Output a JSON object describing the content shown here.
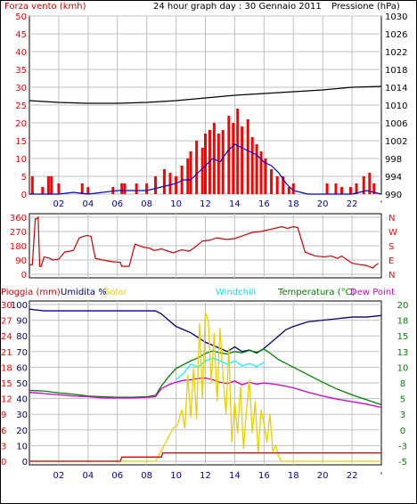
{
  "header": {
    "left_label": "Forza vento (kmh)",
    "center_title": "24 hour graph day : 30 Gennaio 2011",
    "right_label": "Pressione (hPa)"
  },
  "colors": {
    "red": "#ff0000",
    "dark_red": "#cc0000",
    "blue": "#0000cc",
    "navy": "#000080",
    "black": "#000000",
    "gold": "#e8d000",
    "cyan": "#00ffff",
    "green": "#008000",
    "magenta": "#cc00cc",
    "grid": "#c0c0c0"
  },
  "x_ticks": [
    "02",
    "04",
    "06",
    "08",
    "10",
    "12",
    "14",
    "16",
    "18",
    "20",
    "22",
    "'"
  ],
  "chart_data": [
    {
      "type": "line",
      "title": "24 hour graph day : 30 Gennaio 2011",
      "x_range_hours": [
        0,
        24
      ],
      "wind_axis": {
        "label": "Forza vento (kmh)",
        "ticks": [
          0,
          5,
          10,
          15,
          20,
          25,
          30,
          35,
          40,
          45,
          50
        ],
        "range": [
          0,
          50
        ]
      },
      "pressure_axis": {
        "label": "Pressione (hPa)",
        "ticks": [
          990,
          994,
          998,
          1002,
          1006,
          1010,
          1014,
          1018,
          1022,
          1026,
          1030
        ],
        "range": [
          990,
          1030
        ]
      },
      "series": [
        {
          "name": "gust",
          "color": "#ff0000",
          "kind": "bars",
          "x": [
            0.2,
            0.9,
            1.3,
            1.5,
            2.0,
            3.6,
            4.0,
            5.7,
            6.3,
            6.5,
            7.3,
            8.0,
            8.6,
            9.2,
            9.6,
            10.0,
            10.4,
            10.8,
            11.0,
            11.4,
            11.8,
            12.0,
            12.3,
            12.6,
            12.9,
            13.2,
            13.6,
            13.9,
            14.2,
            14.5,
            14.9,
            15.2,
            15.5,
            15.8,
            16.1,
            16.5,
            16.9,
            17.3,
            17.7,
            18.0,
            20.3,
            20.9,
            21.3,
            21.9,
            22.3,
            22.8,
            23.2,
            23.5
          ],
          "values": [
            5,
            2,
            5,
            5,
            3,
            3,
            2,
            2,
            3,
            3,
            3,
            3,
            5,
            7,
            6,
            5,
            8,
            10,
            12,
            15,
            13,
            17,
            18,
            20,
            17,
            18,
            22,
            20,
            24,
            19,
            21,
            16,
            14,
            12,
            10,
            7,
            5,
            5,
            2,
            3,
            3,
            3,
            2,
            2,
            3,
            5,
            6,
            3
          ]
        },
        {
          "name": "wind",
          "color": "#0000cc",
          "kind": "line",
          "x": [
            0,
            1,
            2,
            3,
            4,
            5,
            6,
            7,
            8,
            9,
            10,
            10.5,
            11,
            11.5,
            12,
            12.5,
            13,
            13.5,
            14,
            14.5,
            15,
            15.5,
            16,
            16.5,
            17,
            17.5,
            18,
            19,
            20,
            21,
            22,
            23,
            24
          ],
          "values": [
            0,
            0,
            0,
            0.5,
            0,
            0.5,
            1,
            1,
            1,
            2,
            3,
            4,
            4,
            6,
            8,
            10,
            9,
            12,
            14,
            13,
            12,
            11,
            9,
            8,
            6,
            3,
            1,
            0,
            0,
            0,
            0,
            1,
            0
          ]
        },
        {
          "name": "pressure",
          "color": "#000000",
          "kind": "line",
          "axis": "right",
          "x": [
            0,
            2,
            4,
            6,
            8,
            10,
            12,
            14,
            16,
            18,
            20,
            22,
            24
          ],
          "values": [
            1011,
            1010.6,
            1010.4,
            1010.4,
            1010.6,
            1011,
            1011.6,
            1012.2,
            1012.6,
            1013,
            1013.4,
            1014,
            1014.2
          ]
        }
      ]
    },
    {
      "type": "line",
      "x_range_hours": [
        0,
        24
      ],
      "dir_axis_left": {
        "ticks": [
          360,
          270,
          180,
          90,
          0
        ],
        "range": [
          0,
          360
        ]
      },
      "dir_axis_right": {
        "ticks": [
          "N",
          "W",
          "S",
          "E",
          "N"
        ]
      },
      "series": [
        {
          "name": "direction",
          "color": "#cc0000",
          "x": [
            0,
            0.2,
            0.4,
            0.5,
            0.6,
            0.7,
            0.8,
            1.0,
            1.4,
            1.6,
            2.0,
            2.4,
            3.0,
            3.4,
            3.9,
            4.2,
            4.5,
            5.0,
            5.6,
            6.2,
            6.3,
            6.8,
            7.2,
            7.8,
            8.2,
            8.5,
            9.0,
            9.8,
            10.4,
            10.9,
            11.2,
            11.8,
            12.3,
            12.8,
            13.4,
            14.0,
            14.6,
            15.2,
            15.8,
            16.5,
            17.2,
            17.6,
            18.0,
            18.3,
            18.8,
            19.5,
            20.1,
            20.6,
            21.0,
            21.3,
            22.0,
            22.6,
            23.0,
            23.4,
            23.8
          ],
          "values": [
            60,
            60,
            350,
            350,
            360,
            50,
            50,
            110,
            100,
            90,
            95,
            140,
            150,
            230,
            245,
            240,
            100,
            90,
            80,
            75,
            50,
            50,
            190,
            170,
            165,
            150,
            160,
            135,
            155,
            145,
            165,
            210,
            215,
            230,
            220,
            225,
            245,
            265,
            270,
            285,
            300,
            290,
            300,
            295,
            140,
            115,
            110,
            115,
            100,
            115,
            70,
            60,
            55,
            40,
            70
          ]
        }
      ]
    },
    {
      "type": "line",
      "x_range_hours": [
        0,
        24
      ],
      "left_axes": {
        "rain_label": "Pioggia (mm)",
        "rain_ticks": [
          0,
          3,
          6,
          9,
          12,
          15,
          18,
          21,
          24,
          27,
          30
        ],
        "humidity_label": "Umidita %",
        "humidity_ticks": [
          0,
          10,
          20,
          30,
          40,
          50,
          60,
          70,
          80,
          90,
          100
        ],
        "solar_label": "Solar"
      },
      "right_axis": {
        "label": "Temperatura (°C)",
        "ticks": [
          -5,
          -3,
          0,
          3,
          5,
          8,
          10,
          13,
          15,
          18,
          20
        ],
        "range": [
          -5,
          20
        ]
      },
      "legend": [
        "Pioggia (mm)",
        "Umidita %",
        "Solar",
        "Windchill",
        "Temperatura (°C)",
        "Dew Point"
      ],
      "series": [
        {
          "name": "Umidita %",
          "color": "#000080",
          "axis": "humidity",
          "x": [
            0,
            1,
            2,
            3,
            4,
            5,
            6,
            7,
            8,
            8.6,
            9,
            9.5,
            10,
            10.5,
            11,
            11.5,
            12,
            12.5,
            13,
            13.5,
            14,
            14.5,
            15,
            15.5,
            16,
            16.5,
            17,
            17.5,
            18,
            19,
            20,
            21,
            22,
            23,
            24
          ],
          "values": [
            97,
            96,
            96,
            96,
            96,
            96,
            96,
            96,
            96,
            96,
            94,
            90,
            86,
            84,
            82,
            79,
            76,
            74,
            72,
            70,
            73,
            70,
            71,
            69,
            72,
            76,
            80,
            84,
            86,
            89,
            90,
            91,
            92,
            92,
            93
          ]
        },
        {
          "name": "Windchill",
          "color": "#00ffff",
          "axis": "temperature",
          "x": [
            10,
            10.5,
            11,
            11.5,
            12,
            12.5,
            13,
            13.5,
            14,
            14.5,
            15,
            15.5,
            16
          ],
          "values": [
            8,
            9,
            10.5,
            10,
            11,
            11.5,
            11,
            10.5,
            11,
            10.2,
            10.6,
            10.1,
            10.8
          ]
        },
        {
          "name": "Temperatura (°C)",
          "color": "#008000",
          "axis": "temperature",
          "x": [
            0,
            1,
            2,
            3,
            4,
            5,
            6,
            7,
            8,
            8.6,
            9,
            9.5,
            10,
            10.5,
            11,
            11.5,
            12,
            12.5,
            13,
            13.5,
            14,
            14.5,
            15,
            15.5,
            16,
            16.5,
            17,
            18,
            19,
            20,
            21,
            22,
            23,
            24
          ],
          "values": [
            6.3,
            6.2,
            5.9,
            5.7,
            5.4,
            5.3,
            5.2,
            5.2,
            5.3,
            5.5,
            7,
            8.5,
            9.8,
            10.4,
            11,
            11.5,
            12.2,
            12.6,
            12.3,
            12.1,
            12.5,
            12.3,
            12.7,
            12.4,
            12.9,
            12.1,
            11.2,
            10,
            8.8,
            7.6,
            6.5,
            5.6,
            4.8,
            4
          ]
        },
        {
          "name": "Dew Point",
          "color": "#cc00cc",
          "axis": "temperature",
          "x": [
            0,
            1,
            2,
            3,
            4,
            5,
            6,
            7,
            8,
            8.6,
            9,
            9.5,
            10,
            10.5,
            11,
            11.5,
            12,
            12.5,
            13,
            13.5,
            14,
            14.5,
            15,
            15.5,
            16,
            17,
            18,
            19,
            20,
            21,
            22,
            23,
            24
          ],
          "values": [
            6,
            5.8,
            5.6,
            5.4,
            5.3,
            5.1,
            5.1,
            5.1,
            5.2,
            5.3,
            6.6,
            7.2,
            7.6,
            7.9,
            8,
            8.2,
            8.3,
            8,
            7.6,
            7.4,
            7.8,
            7.2,
            7.6,
            7.3,
            7.5,
            7.2,
            6.7,
            6,
            5.4,
            4.9,
            4.5,
            4.1,
            3.6
          ]
        },
        {
          "name": "Solar",
          "color": "#e8d000",
          "axis": "solar_level",
          "x": [
            0,
            8.6,
            9,
            9.4,
            9.8,
            10.1,
            10.4,
            10.6,
            10.8,
            11,
            11.2,
            11.4,
            11.6,
            11.8,
            12,
            12.2,
            12.4,
            12.6,
            12.8,
            13,
            13.2,
            13.4,
            13.6,
            13.8,
            14,
            14.2,
            14.4,
            14.6,
            14.8,
            15,
            15.2,
            15.4,
            15.6,
            15.8,
            16,
            16.2,
            16.4,
            16.6,
            16.8,
            17,
            17.2,
            24
          ],
          "values": [
            0,
            0,
            0.07,
            0.14,
            0.21,
            0.23,
            0.33,
            0.21,
            0.55,
            0.28,
            0.6,
            0.27,
            0.88,
            0.4,
            0.95,
            0.9,
            0.5,
            0.82,
            0.38,
            0.85,
            0.55,
            0.3,
            0.72,
            0.12,
            0.38,
            0.18,
            0.48,
            0.08,
            0.32,
            0.52,
            0.18,
            0.38,
            0.05,
            0.33,
            0.24,
            0.12,
            0.3,
            0.06,
            0.1,
            0.03,
            0,
            0
          ]
        },
        {
          "name": "Pioggia (mm)",
          "color": "#cc0000",
          "axis": "rain",
          "x": [
            0,
            6.2,
            6.3,
            9,
            9.1,
            24
          ],
          "values": [
            0,
            0,
            0.8,
            0.8,
            1.6,
            1.6
          ]
        }
      ]
    }
  ],
  "dir_right_labels": [
    "N",
    "W",
    "S",
    "E",
    "N"
  ],
  "bottom_legend": {
    "rain": "Pioggia (mm)",
    "humidity": "Umidita %",
    "solar": "Solar",
    "windchill": "Windchill",
    "temperature": "Temperatura (°C)",
    "dewpoint": "Dew Point"
  }
}
